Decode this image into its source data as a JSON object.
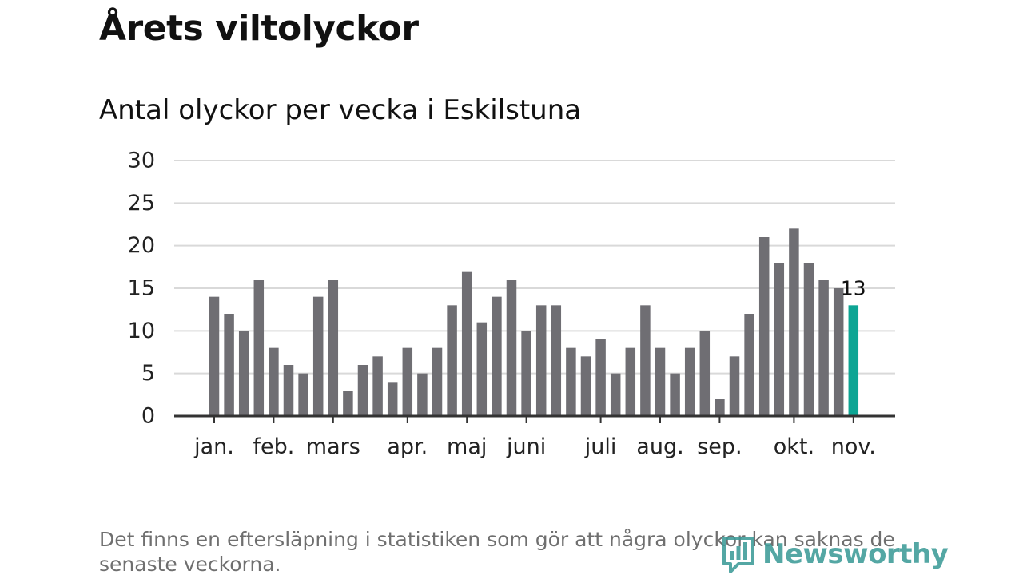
{
  "header": {
    "title": "Årets viltolyckor",
    "subtitle": "Antal olyckor per vecka i Eskilstuna"
  },
  "footer": {
    "note": "Det finns en eftersläpning i statistiken som gör att några olyckor kan saknas de senaste veckorna.",
    "brand": "Newsworthy"
  },
  "colors": {
    "bar": "#6f6e73",
    "highlight": "#0da594",
    "grid": "#d9d9d9",
    "axis": "#333333",
    "brand": "#3d9b98"
  },
  "icons": {
    "logo": "newsworthy-logo-icon"
  },
  "chart_data": {
    "type": "bar",
    "title": "Antal olyckor per vecka i Eskilstuna",
    "xlabel": "",
    "ylabel": "",
    "ylim": [
      0,
      30
    ],
    "yticks": [
      0,
      5,
      10,
      15,
      20,
      25,
      30
    ],
    "grid": true,
    "legend": "none",
    "week_values": [
      14,
      12,
      10,
      16,
      8,
      6,
      5,
      14,
      16,
      3,
      6,
      7,
      4,
      8,
      5,
      8,
      13,
      17,
      11,
      14,
      16,
      10,
      13,
      13,
      8,
      7,
      9,
      5,
      8,
      13,
      8,
      5,
      8,
      10,
      2,
      7,
      12,
      21,
      18,
      22,
      18,
      16,
      15,
      13
    ],
    "month_labels": [
      {
        "label": "jan.",
        "week_index": 0
      },
      {
        "label": "feb.",
        "week_index": 4
      },
      {
        "label": "mars",
        "week_index": 8
      },
      {
        "label": "apr.",
        "week_index": 13
      },
      {
        "label": "maj",
        "week_index": 17
      },
      {
        "label": "juni",
        "week_index": 21
      },
      {
        "label": "juli",
        "week_index": 26
      },
      {
        "label": "aug.",
        "week_index": 30
      },
      {
        "label": "sep.",
        "week_index": 34
      },
      {
        "label": "okt.",
        "week_index": 39
      },
      {
        "label": "nov.",
        "week_index": 43
      }
    ],
    "highlight_index": 43,
    "highlight_label": "13"
  }
}
